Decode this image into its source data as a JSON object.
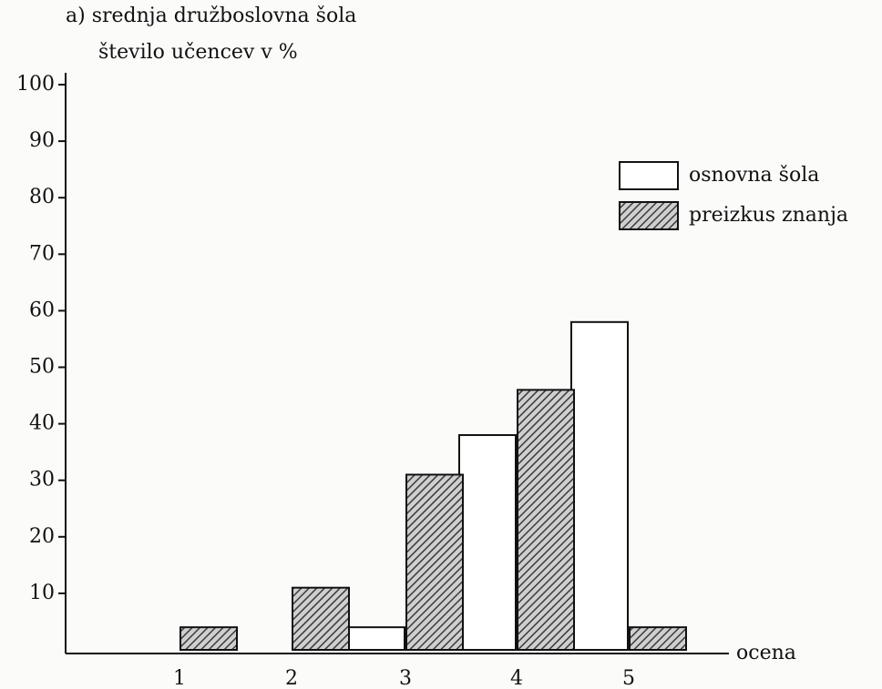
{
  "chart_data": {
    "type": "bar",
    "title": "a) srednja družboslovna šola",
    "ylabel": "število učencev v %",
    "xlabel": "ocena",
    "categories": [
      "1",
      "2",
      "3",
      "4",
      "5"
    ],
    "series": [
      {
        "name": "osnovna šola",
        "color": "#ffffff",
        "fill": "solid",
        "values": [
          0,
          0,
          4,
          38,
          58
        ]
      },
      {
        "name": "preizkus znanja",
        "color": "#4a4a4a",
        "fill": "hatch",
        "values": [
          4,
          11,
          31,
          46,
          4
        ]
      }
    ],
    "ylim": [
      0,
      100
    ],
    "yticks": [
      10,
      20,
      30,
      40,
      50,
      60,
      70,
      80,
      90,
      100
    ],
    "legend": "upper right"
  }
}
